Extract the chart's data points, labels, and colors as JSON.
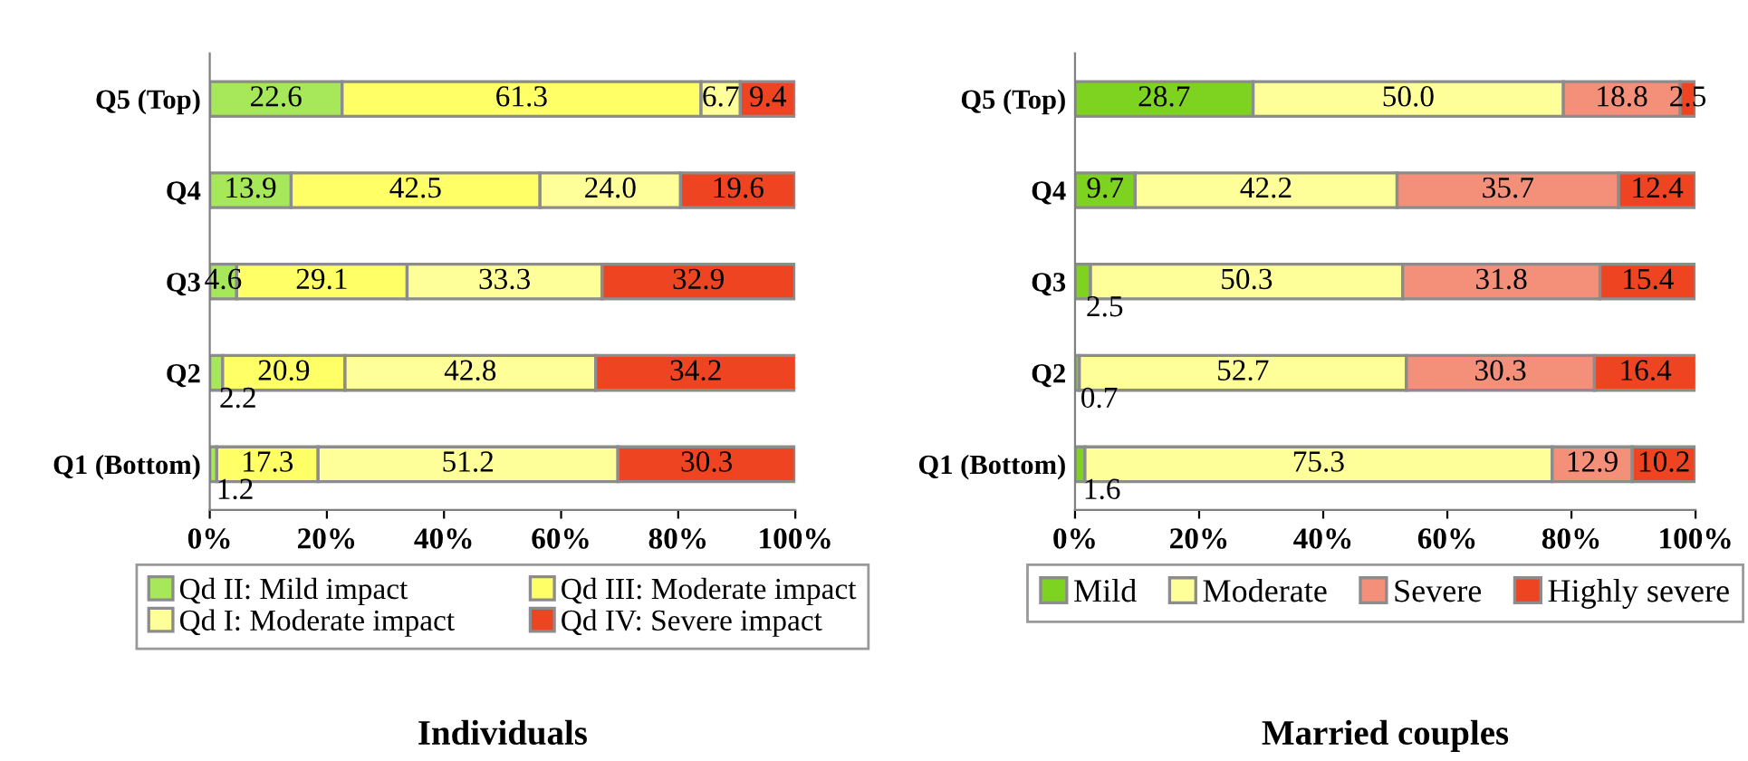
{
  "chart_data": [
    {
      "type": "bar",
      "orientation": "horizontal",
      "stacked": true,
      "title": "Individuals",
      "categories": [
        "Q5 (Top)",
        "Q4",
        "Q3",
        "Q2",
        "Q1 (Bottom)"
      ],
      "series": [
        {
          "name": "Qd II: Mild impact",
          "color": "#a6e85a",
          "values": [
            22.6,
            13.9,
            4.6,
            2.2,
            1.2
          ],
          "value_labels": [
            "22.6",
            "13.9",
            "4.6",
            "2.2",
            "1.2"
          ]
        },
        {
          "name": "Qd III: Moderate impact",
          "color": "#ffff66",
          "values": [
            61.3,
            42.5,
            29.1,
            20.9,
            17.3
          ],
          "value_labels": [
            "61.3",
            "42.5",
            "29.1",
            "20.9",
            "17.3"
          ]
        },
        {
          "name": "Qd I: Moderate impact",
          "color": "#ffff99",
          "values": [
            6.7,
            24.0,
            33.3,
            42.8,
            51.2
          ],
          "value_labels": [
            "6.7",
            "24.0",
            "33.3",
            "42.8",
            "51.2"
          ]
        },
        {
          "name": "Qd IV: Severe impact",
          "color": "#ee4422",
          "values": [
            9.4,
            19.6,
            32.9,
            34.2,
            30.3
          ],
          "value_labels": [
            "9.4",
            "19.6",
            "32.9",
            "34.2",
            "30.3"
          ]
        }
      ],
      "xlim": [
        0,
        100
      ],
      "xticks": [
        {
          "value": 0,
          "label": "0%"
        },
        {
          "value": 20,
          "label": "20%"
        },
        {
          "value": 40,
          "label": "40%"
        },
        {
          "value": 60,
          "label": "60%"
        },
        {
          "value": 80,
          "label": "80%"
        },
        {
          "value": 100,
          "label": "100%"
        }
      ],
      "legend": "bottom",
      "grid": false
    },
    {
      "type": "bar",
      "orientation": "horizontal",
      "stacked": true,
      "title": "Married couples",
      "categories": [
        "Q5 (Top)",
        "Q4",
        "Q3",
        "Q2",
        "Q1 (Bottom)"
      ],
      "series": [
        {
          "name": "Mild",
          "color": "#7ed321",
          "values": [
            28.7,
            9.7,
            2.5,
            0.7,
            1.6
          ],
          "value_labels": [
            "28.7",
            "9.7",
            "2.5",
            "0.7",
            "1.6"
          ]
        },
        {
          "name": "Moderate",
          "color": "#ffff99",
          "values": [
            50.0,
            42.2,
            50.3,
            52.7,
            75.3
          ],
          "value_labels": [
            "50.0",
            "42.2",
            "50.3",
            "52.7",
            "75.3"
          ]
        },
        {
          "name": "Severe",
          "color": "#f4907a",
          "values": [
            18.8,
            35.7,
            31.8,
            30.3,
            12.9
          ],
          "value_labels": [
            "18.8",
            "35.7",
            "31.8",
            "30.3",
            "12.9"
          ]
        },
        {
          "name": "Highly severe",
          "color": "#ee4422",
          "values": [
            2.5,
            12.4,
            15.4,
            16.4,
            10.2
          ],
          "value_labels": [
            "2.5",
            "12.4",
            "15.4",
            "16.4",
            "10.2"
          ]
        }
      ],
      "xlim": [
        0,
        100
      ],
      "xticks": [
        {
          "value": 0,
          "label": "0%"
        },
        {
          "value": 20,
          "label": "20%"
        },
        {
          "value": 40,
          "label": "40%"
        },
        {
          "value": 60,
          "label": "60%"
        },
        {
          "value": 80,
          "label": "80%"
        },
        {
          "value": 100,
          "label": "100%"
        }
      ],
      "legend": "bottom",
      "grid": false
    }
  ]
}
